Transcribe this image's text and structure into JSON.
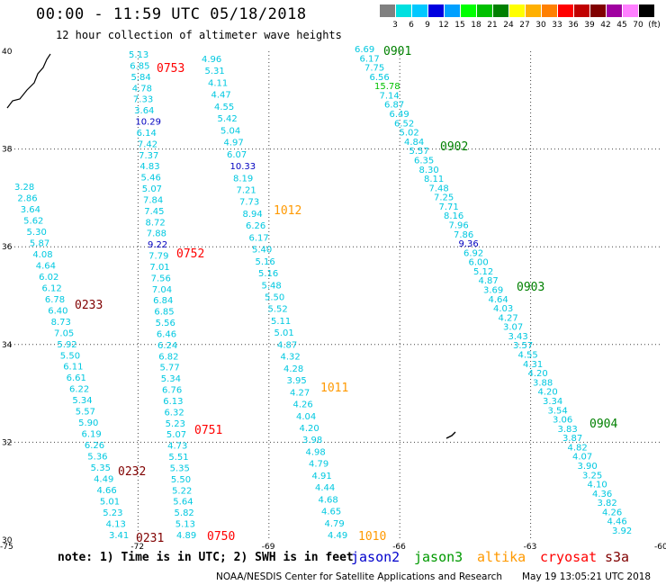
{
  "title": "00:00 - 11:59 UTC 05/18/2018",
  "subtitle": "12 hour collection of altimeter wave heights",
  "colorbar": {
    "ticks": [
      "3",
      "6",
      "9",
      "12",
      "15",
      "18",
      "21",
      "24",
      "27",
      "30",
      "33",
      "36",
      "39",
      "42",
      "45",
      "70",
      "(ft)"
    ],
    "colors": [
      "#808080",
      "#00e0e0",
      "#00c8ff",
      "#0000e0",
      "#00a0ff",
      "#00ff00",
      "#00c000",
      "#008000",
      "#ffff00",
      "#ffb000",
      "#ff8000",
      "#ff0000",
      "#c00000",
      "#800000",
      "#a000a0",
      "#ff80ff",
      "#000000"
    ]
  },
  "axes": {
    "lat_labels": [
      "40",
      "38",
      "36",
      "34",
      "32",
      "30"
    ],
    "lon_labels": [
      "-75",
      "-72",
      "-69",
      "-66",
      "-63",
      "-60"
    ]
  },
  "tracks": [
    {
      "id": "0233",
      "color": "#800000",
      "label_color": "#800000",
      "values": [
        "3.28",
        "2.86",
        "3.64",
        "5.62",
        "5.30",
        "5.87",
        "4.08",
        "4.64",
        "6.02",
        "6.12",
        "6.78",
        "6.40",
        "8.73",
        "7.05",
        "5.92",
        "5.50",
        "6.11",
        "6.61",
        "6.22",
        "5.34",
        "5.57",
        "5.90",
        "6.19",
        "6.26",
        "5.36",
        "5.35",
        "4.49",
        "4.66",
        "5.01",
        "5.23",
        "4.13",
        "3.41"
      ]
    },
    {
      "id": "0232",
      "color": "#800000",
      "label_color": "#800000",
      "values": []
    },
    {
      "id": "0231",
      "color": "#800000",
      "label_color": "#800000",
      "values": []
    },
    {
      "id": "0753",
      "color": "#ff0000",
      "label_color": "#ff0000",
      "values": [
        "5.13",
        "6.85",
        "5.84",
        "4.78",
        "7.33",
        "3.64",
        "10.29",
        "6.14",
        "7.42",
        "7.37",
        "4.83",
        "5.46",
        "5.07",
        "7.84",
        "7.45",
        "8.72",
        "7.88",
        "9.22",
        "7.79",
        "7.01",
        "7.56",
        "7.04",
        "6.84",
        "6.85",
        "5.56",
        "6.46",
        "6.24",
        "6.82",
        "5.77",
        "5.34",
        "6.76",
        "6.13",
        "6.32",
        "5.23",
        "5.07",
        "4.73",
        "5.51",
        "5.35",
        "5.50",
        "5.22",
        "5.64",
        "5.82",
        "5.13",
        "4.89"
      ]
    },
    {
      "id": "0752",
      "color": "#ff0000",
      "label_color": "#ff0000",
      "values": []
    },
    {
      "id": "0751",
      "color": "#ff0000",
      "label_color": "#ff0000",
      "values": []
    },
    {
      "id": "0750",
      "color": "#ff0000",
      "label_color": "#ff0000",
      "values": []
    },
    {
      "id": "1012",
      "color": "#ff9900",
      "label_color": "#ff9900",
      "values": [
        "4.96",
        "5.31",
        "4.11",
        "4.47",
        "4.55",
        "5.42",
        "5.04",
        "4.97",
        "6.07",
        "10.33",
        "8.19",
        "7.21",
        "7.73",
        "8.94",
        "6.26",
        "6.17",
        "5.40",
        "5.16",
        "5.16",
        "5.48",
        "5.50",
        "5.52",
        "5.11",
        "5.01",
        "4.87",
        "4.32",
        "4.28",
        "3.95",
        "4.27",
        "4.26",
        "4.04",
        "4.20",
        "3.98",
        "4.98",
        "4.79",
        "4.91",
        "4.44",
        "4.68",
        "4.65",
        "4.79",
        "4.49"
      ]
    },
    {
      "id": "1011",
      "color": "#ff9900",
      "label_color": "#ff9900",
      "values": []
    },
    {
      "id": "1010",
      "color": "#ff9900",
      "label_color": "#ff9900",
      "values": []
    },
    {
      "id": "0901",
      "color": "#008000",
      "label_color": "#008000",
      "values": [
        "6.69",
        "6.17",
        "7.75",
        "6.56",
        "15.78",
        "7.14",
        "6.87",
        "6.49",
        "6.52",
        "5.02",
        "4.84",
        "5.57",
        "6.35",
        "8.30",
        "8.11",
        "7.48",
        "7.25",
        "7.71",
        "8.16",
        "7.96",
        "7.86",
        "9.36",
        "6.92",
        "6.00",
        "5.12",
        "4.87",
        "3.69",
        "4.64",
        "4.03",
        "4.27",
        "3.07",
        "3.43",
        "3.57",
        "4.55",
        "4.31",
        "4.20",
        "3.88",
        "4.20",
        "3.34",
        "3.54",
        "3.06",
        "3.83",
        "3.87",
        "4.82",
        "4.07",
        "3.90",
        "3.25",
        "4.10",
        "4.36",
        "3.82",
        "4.26",
        "4.46",
        "3.92"
      ]
    },
    {
      "id": "0902",
      "color": "#008000",
      "label_color": "#008000",
      "values": []
    },
    {
      "id": "0903",
      "color": "#008000",
      "label_color": "#008000",
      "values": []
    },
    {
      "id": "0904",
      "color": "#008000",
      "label_color": "#008000",
      "values": []
    }
  ],
  "footer": {
    "note": "note: 1) Time is in UTC; 2) SWH is in feet",
    "legend": [
      {
        "name": "jason2",
        "color": "#0000cc"
      },
      {
        "name": "jason3",
        "color": "#009900"
      },
      {
        "name": "altika",
        "color": "#ff9900"
      },
      {
        "name": "cryosat",
        "color": "#ff0000"
      },
      {
        "name": "s3a",
        "color": "#800000"
      }
    ],
    "credit_left": "NOAA/NESDIS Center for Satellite Applications and Research",
    "credit_right": "May 19 13:05:21 UTC 2018"
  }
}
